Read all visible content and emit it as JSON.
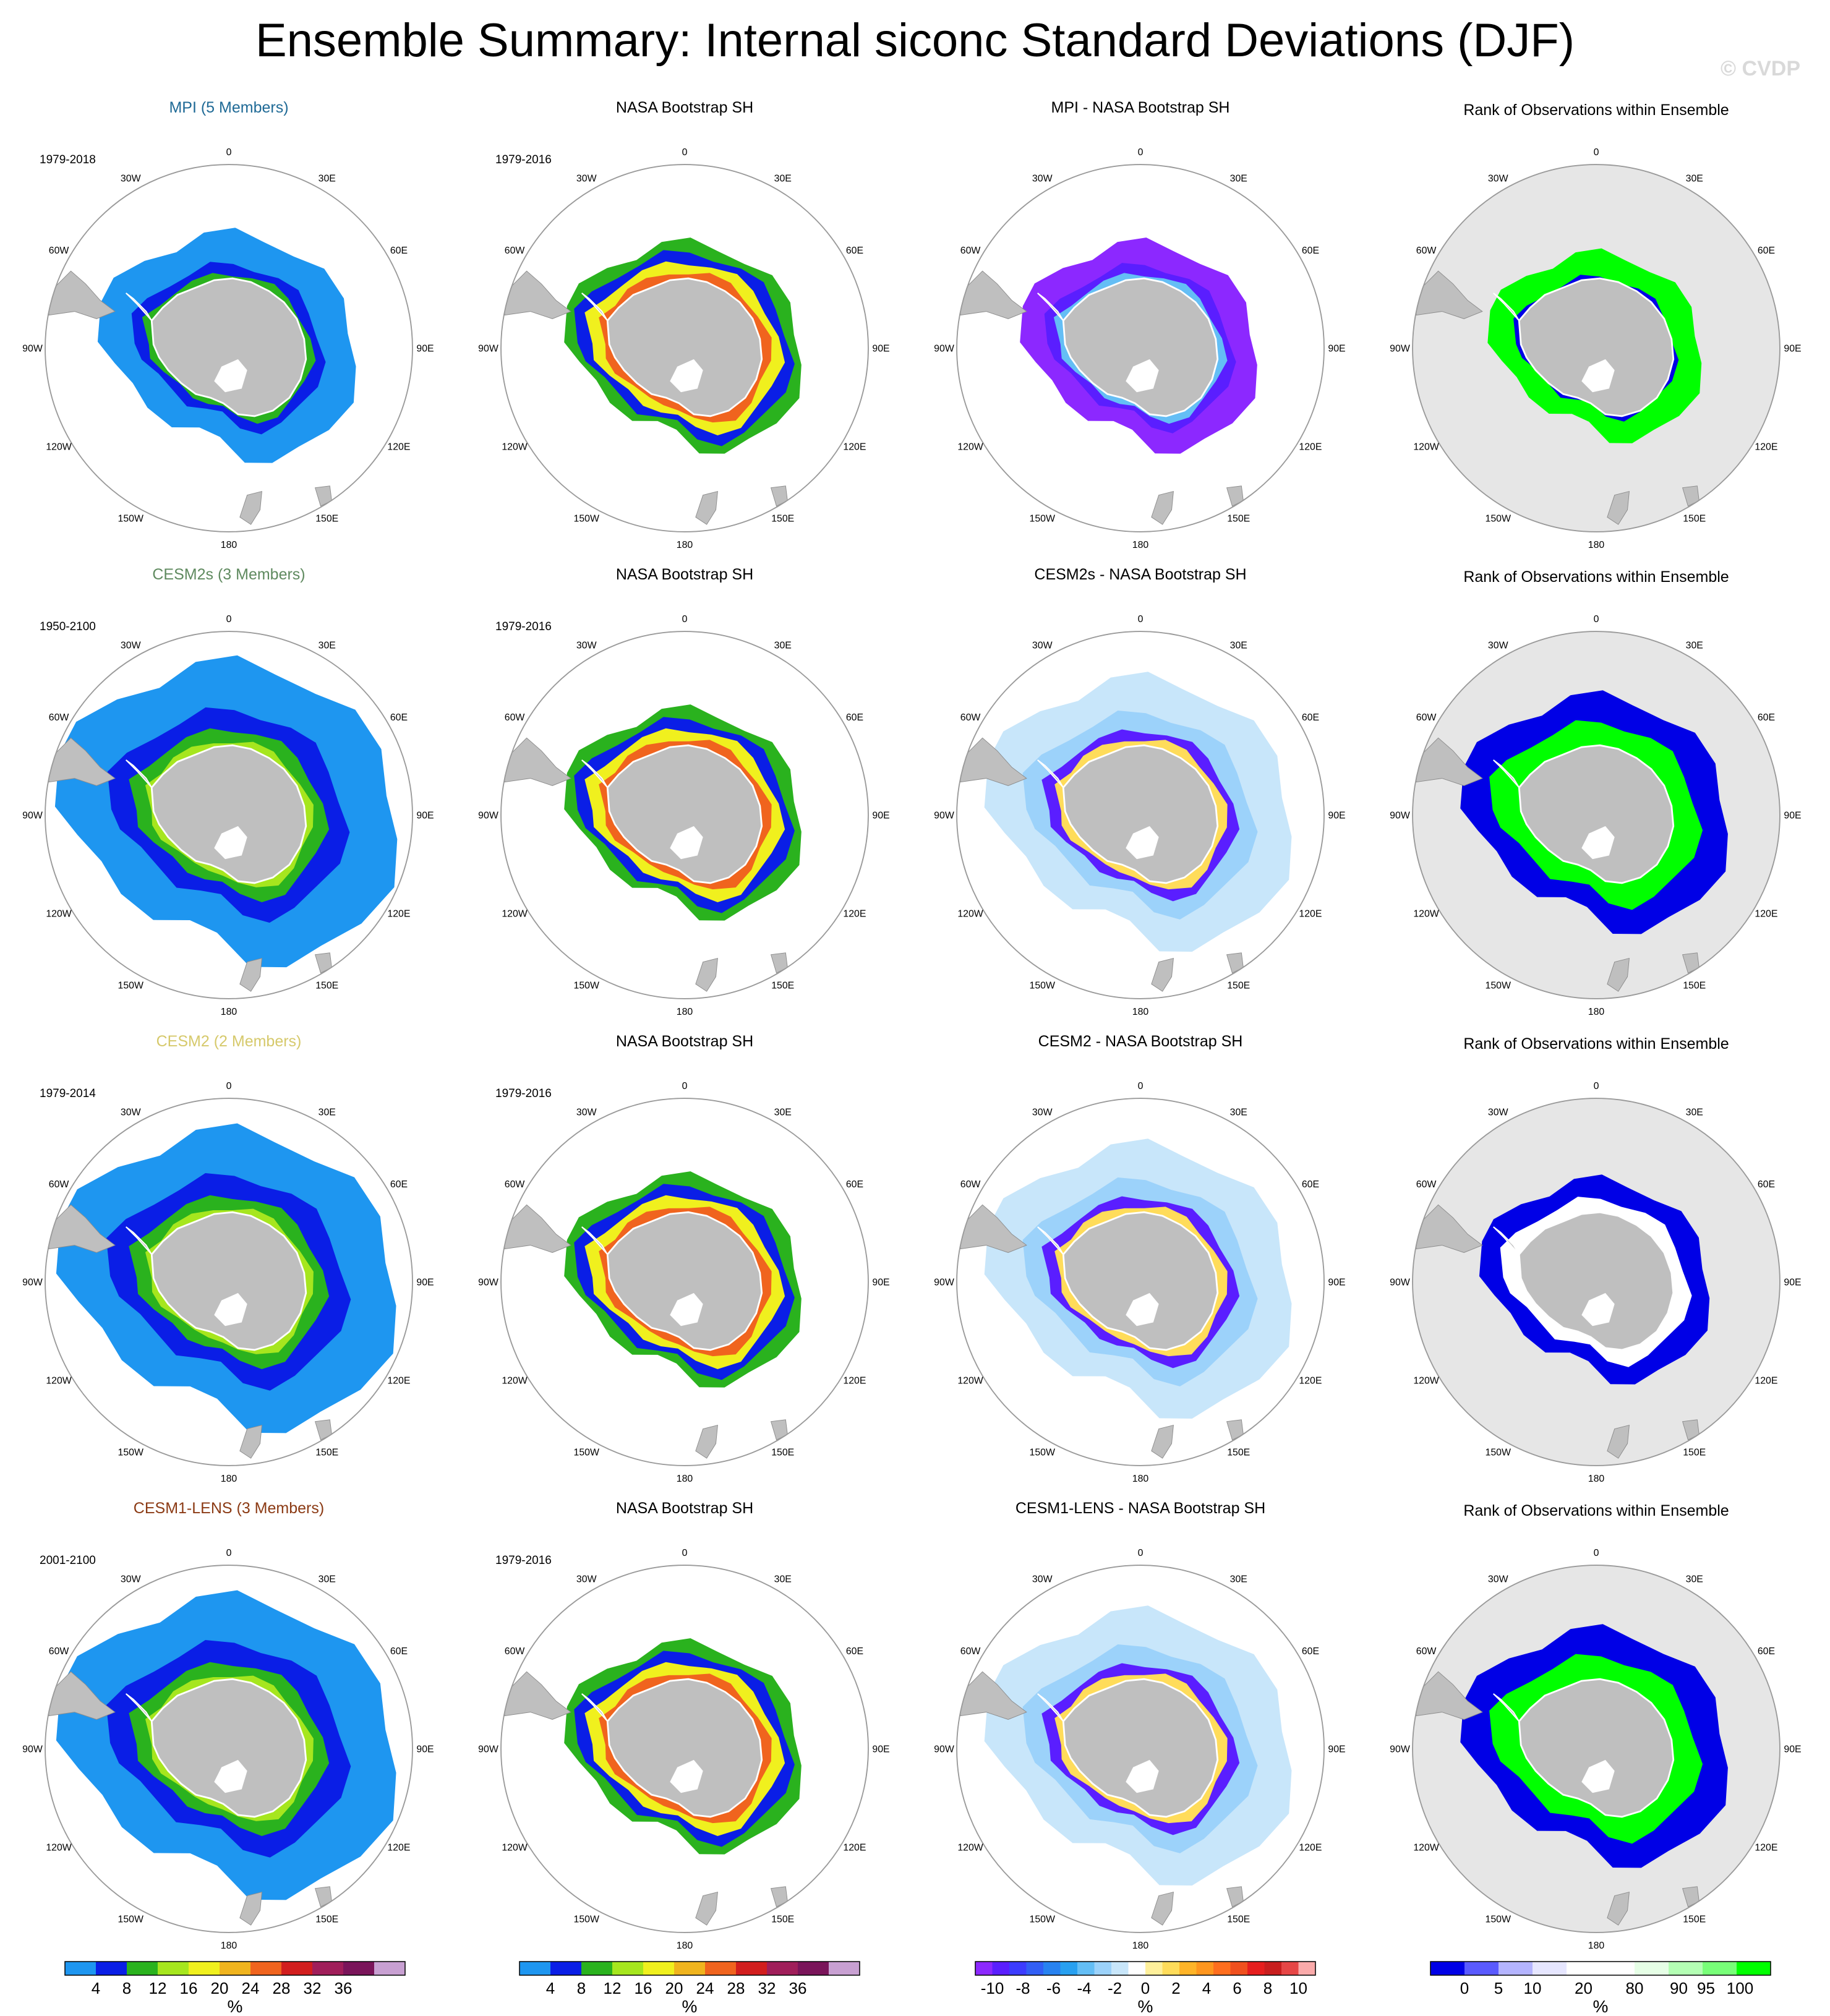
{
  "title": "Ensemble Summary: Internal siconc Standard Deviations (DJF)",
  "watermark": "© CVDP",
  "lon_labels": [
    "0",
    "30E",
    "60E",
    "90E",
    "120E",
    "150E",
    "180",
    "150W",
    "120W",
    "90W",
    "60W",
    "30W"
  ],
  "colors": {
    "ocean": "#ffffff",
    "rank_background": "#e6e6e6",
    "land": "#bfbfbf",
    "land_edge": "#8c8c8c",
    "circle": "#9a9a9a"
  },
  "palettes": {
    "sd": [
      "#1e96f0",
      "#0a1ee6",
      "#2ab21e",
      "#a6e61e",
      "#f0f01e",
      "#f0b41e",
      "#f0641e",
      "#d21e1e",
      "#a01e5a",
      "#7a145a",
      "#c8a0d2"
    ],
    "diff": [
      "#8c28ff",
      "#5a1eff",
      "#3c3cff",
      "#325ff5",
      "#2882f0",
      "#28a0f0",
      "#64bef5",
      "#9cd2fa",
      "#c8e6fa",
      "#ffffff",
      "#fff09b",
      "#ffdc5a",
      "#ffb428",
      "#ff961e",
      "#ff6e1e",
      "#f0501e",
      "#e61e1e",
      "#c81e1e",
      "#e64646",
      "#faaaaa"
    ],
    "rank": [
      "#0000e6",
      "#5a5aff",
      "#b4b4ff",
      "#e6e6ff",
      "#ffffff",
      "#ffffff",
      "#e6ffe6",
      "#b4ffb4",
      "#78ff78",
      "#00ff00"
    ]
  },
  "colorbars": [
    {
      "labels": [
        "4",
        "8",
        "12",
        "16",
        "20",
        "24",
        "28",
        "32",
        "36"
      ],
      "unit": "%"
    },
    {
      "labels": [
        "4",
        "8",
        "12",
        "16",
        "20",
        "24",
        "28",
        "32",
        "36"
      ],
      "unit": "%"
    },
    {
      "labels": [
        "-10",
        "-8",
        "-6",
        "-4",
        "-2",
        "0",
        "2",
        "4",
        "6",
        "8",
        "10"
      ],
      "unit": "%"
    },
    {
      "labels": [
        "0",
        "5",
        "10",
        "20",
        "80",
        "90",
        "95",
        "100"
      ],
      "unit": "%"
    }
  ],
  "rows": [
    {
      "model": "MPI (5 Members)",
      "model_color": "#1f6a96",
      "model_period": "1979-2018",
      "obs": "NASA Bootstrap SH",
      "obs_period": "1979-2016",
      "diff": "MPI - NASA Bootstrap SH",
      "rank": "Rank of Observations within Ensemble",
      "model_fields": [
        {
          "v": "#1e96f0",
          "w": 1.5
        },
        {
          "v": "#0a1ee6",
          "w": 0.45
        },
        {
          "v": "#2ab21e",
          "w": 0.25
        }
      ],
      "obs_fields": [
        {
          "v": "#0a1ee6",
          "w": 0.45
        },
        {
          "v": "#2ab21e",
          "w": 0.5
        },
        {
          "v": "#f0f01e",
          "w": 0.45
        },
        {
          "v": "#f0641e",
          "w": 0.35
        }
      ],
      "diff_fields": [
        {
          "v": "#8c28ff",
          "w": 1.1
        },
        {
          "v": "#5a1eff",
          "w": 0.4
        },
        {
          "v": "#64bef5",
          "w": 0.25
        }
      ],
      "rank_fields": [
        {
          "v": "#00ff00",
          "w": 1.15
        },
        {
          "v": "#0000e6",
          "w": 0.1
        }
      ]
    },
    {
      "model": "CESM2s (3 Members)",
      "model_color": "#5f8a5f",
      "model_period": "1950-2100",
      "obs": "NASA Bootstrap SH",
      "obs_period": "1979-2016",
      "diff": "CESM2s - NASA Bootstrap SH",
      "rank": "Rank of Observations within Ensemble",
      "model_fields": [
        {
          "v": "#1e96f0",
          "w": 2.3
        },
        {
          "v": "#0a1ee6",
          "w": 0.9
        },
        {
          "v": "#2ab21e",
          "w": 0.55
        },
        {
          "v": "#a6e61e",
          "w": 0.25
        }
      ],
      "obs_fields": [
        {
          "v": "#0a1ee6",
          "w": 0.45
        },
        {
          "v": "#2ab21e",
          "w": 0.5
        },
        {
          "v": "#f0f01e",
          "w": 0.45
        },
        {
          "v": "#f0641e",
          "w": 0.35
        }
      ],
      "diff_fields": [
        {
          "v": "#c8e6fa",
          "w": 1.7
        },
        {
          "v": "#9cd2fa",
          "w": 0.8
        },
        {
          "v": "#ffdc5a",
          "w": 0.35
        },
        {
          "v": "#5a1eff",
          "w": 0.4
        }
      ],
      "rank_fields": [
        {
          "v": "#0000e6",
          "w": 1.3
        },
        {
          "v": "#00ff00",
          "w": 1.1
        }
      ]
    },
    {
      "model": "CESM2 (2 Members)",
      "model_color": "#d6c96b",
      "model_period": "1979-2014",
      "obs": "NASA Bootstrap SH",
      "obs_period": "1979-2016",
      "diff": "CESM2 - NASA Bootstrap SH",
      "rank": "Rank of Observations within Ensemble",
      "model_fields": [
        {
          "v": "#1e96f0",
          "w": 2.2
        },
        {
          "v": "#0a1ee6",
          "w": 0.95
        },
        {
          "v": "#2ab21e",
          "w": 0.55
        },
        {
          "v": "#a6e61e",
          "w": 0.25
        }
      ],
      "obs_fields": [
        {
          "v": "#0a1ee6",
          "w": 0.45
        },
        {
          "v": "#2ab21e",
          "w": 0.5
        },
        {
          "v": "#f0f01e",
          "w": 0.45
        },
        {
          "v": "#f0641e",
          "w": 0.35
        }
      ],
      "diff_fields": [
        {
          "v": "#c8e6fa",
          "w": 1.7
        },
        {
          "v": "#9cd2fa",
          "w": 0.8
        },
        {
          "v": "#ffdc5a",
          "w": 0.35
        },
        {
          "v": "#5a1eff",
          "w": 0.4
        }
      ],
      "rank_fields": [
        {
          "v": "#0000e6",
          "w": 0.95
        },
        {
          "v": "#ffffff",
          "w": 0.65
        }
      ]
    },
    {
      "model": "CESM1-LENS (3 Members)",
      "model_color": "#8b3a14",
      "model_period": "2001-2100",
      "obs": "NASA Bootstrap SH",
      "obs_period": "1979-2016",
      "diff": "CESM1-LENS - NASA Bootstrap SH",
      "rank": "Rank of Observations within Ensemble",
      "model_fields": [
        {
          "v": "#1e96f0",
          "w": 2.2
        },
        {
          "v": "#0a1ee6",
          "w": 0.95
        },
        {
          "v": "#2ab21e",
          "w": 0.55
        },
        {
          "v": "#a6e61e",
          "w": 0.25
        }
      ],
      "obs_fields": [
        {
          "v": "#0a1ee6",
          "w": 0.45
        },
        {
          "v": "#2ab21e",
          "w": 0.5
        },
        {
          "v": "#f0f01e",
          "w": 0.45
        },
        {
          "v": "#f0641e",
          "w": 0.35
        }
      ],
      "diff_fields": [
        {
          "v": "#c8e6fa",
          "w": 1.7
        },
        {
          "v": "#9cd2fa",
          "w": 0.8
        },
        {
          "v": "#ffdc5a",
          "w": 0.35
        },
        {
          "v": "#5a1eff",
          "w": 0.4
        }
      ],
      "rank_fields": [
        {
          "v": "#0000e6",
          "w": 1.3
        },
        {
          "v": "#00ff00",
          "w": 1.1
        }
      ]
    }
  ]
}
